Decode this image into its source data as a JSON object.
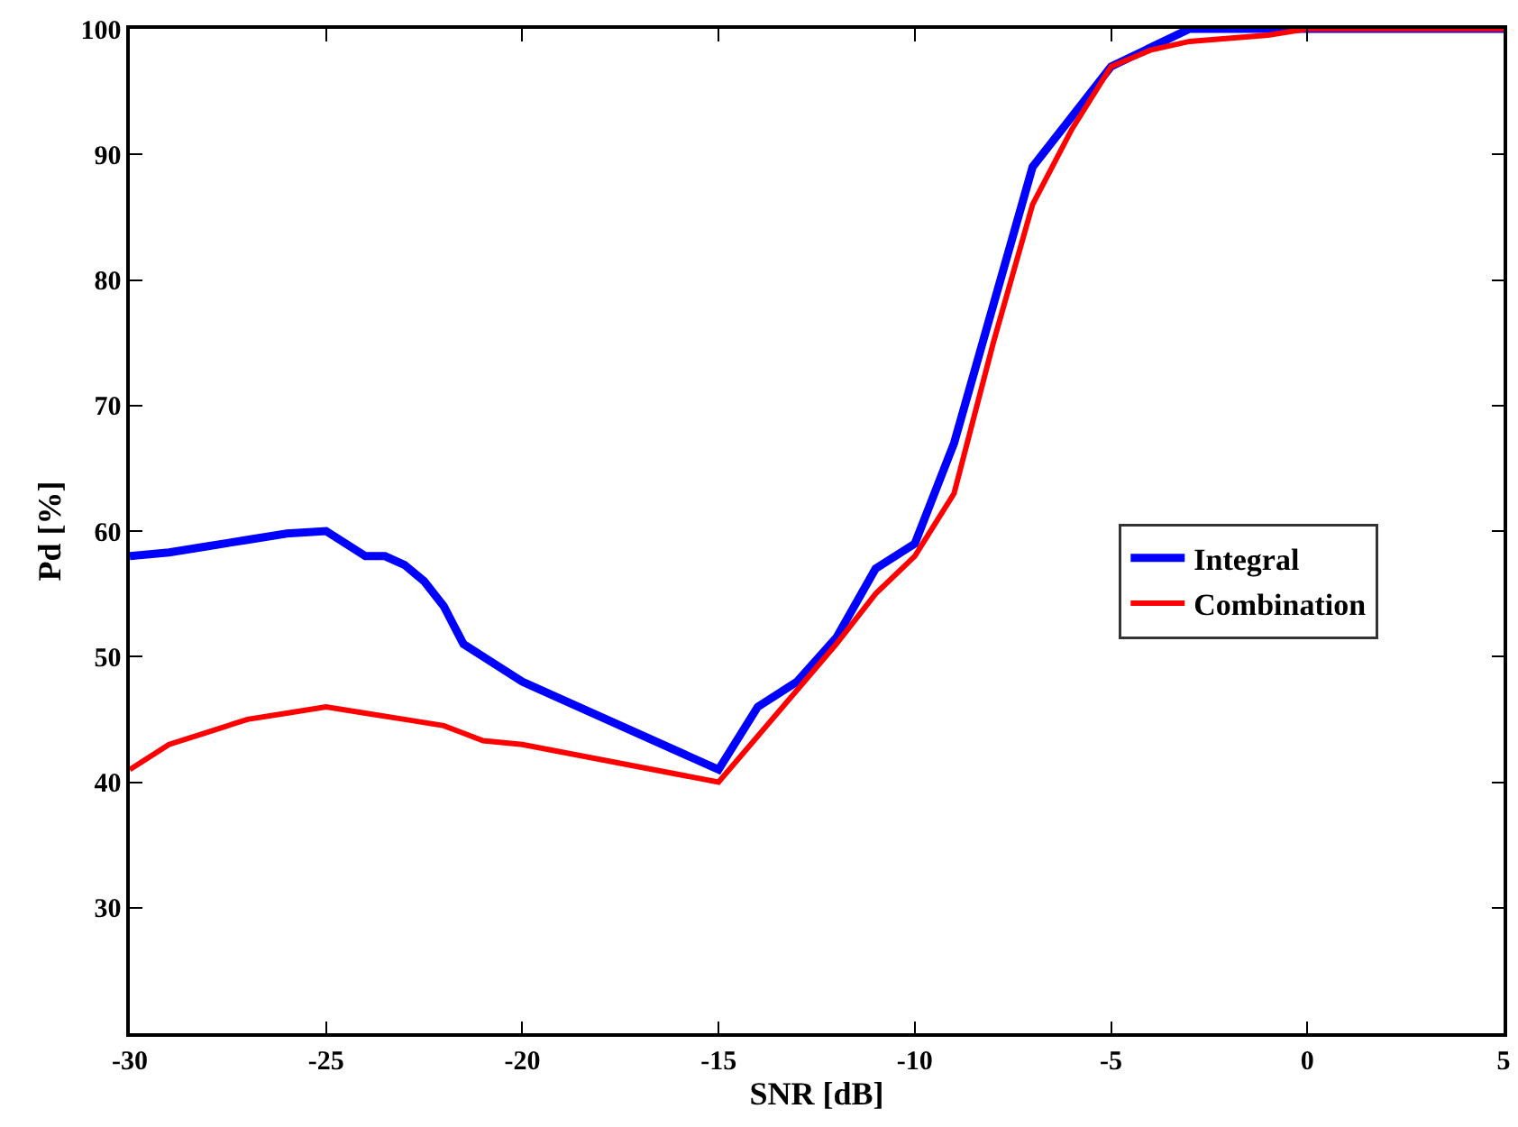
{
  "chart_data": {
    "type": "line",
    "xlabel": "SNR [dB]",
    "ylabel": "Pd [%]",
    "xlim": [
      -30,
      5
    ],
    "xticks": [
      -30,
      -25,
      -20,
      -15,
      -10,
      -5,
      0,
      5
    ],
    "ylim": [
      20,
      100
    ],
    "yticks": [
      30,
      40,
      50,
      60,
      70,
      80,
      90,
      100
    ],
    "grid": false,
    "legend": "right",
    "marker": "none",
    "line_style": "solid",
    "series": [
      {
        "name": "Integral",
        "color": "#0000ff",
        "x": [
          -30,
          -29,
          -28,
          -27,
          -26,
          -25,
          -24,
          -23.5,
          -23,
          -22.5,
          -22,
          -21.5,
          -21,
          -20,
          -15,
          -14,
          -13,
          -12,
          -11,
          -10,
          -9,
          -8,
          -7,
          -6,
          -5,
          -3,
          0,
          5
        ],
        "values": [
          58,
          58.3,
          58.8,
          59.3,
          59.8,
          60,
          58,
          58,
          57.3,
          56,
          54,
          51,
          50,
          48,
          41,
          46,
          48,
          51.5,
          57,
          59,
          67,
          78,
          89,
          93,
          97,
          100,
          100,
          100
        ]
      },
      {
        "name": "Combination",
        "color": "#ff0000",
        "x": [
          -30,
          -29,
          -28,
          -27,
          -26,
          -25,
          -24,
          -23,
          -22,
          -21,
          -20,
          -15,
          -12,
          -11,
          -10,
          -9,
          -8,
          -7,
          -6,
          -5,
          -4,
          -3,
          -1,
          0,
          5
        ],
        "values": [
          41,
          43,
          44,
          45,
          45.5,
          46,
          45.5,
          45,
          44.5,
          43.3,
          43,
          40,
          51,
          55,
          58,
          63,
          75,
          86,
          92,
          97,
          98.3,
          99,
          99.5,
          100,
          100
        ]
      }
    ]
  }
}
